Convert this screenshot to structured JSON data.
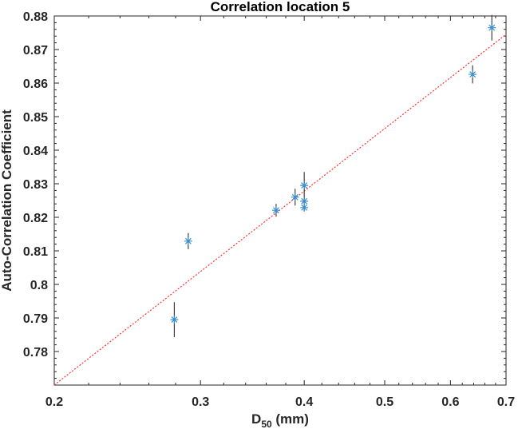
{
  "chart_data": {
    "type": "scatter",
    "title": "Correlation location 5",
    "xlabel": "D",
    "xlabel_subscript": "50",
    "xlabel_unit": " (mm)",
    "ylabel": "Auto-Correlation Coefficient",
    "xscale": "log",
    "xlim": [
      0.2,
      0.7
    ],
    "ylim": [
      0.77,
      0.88
    ],
    "grid": false,
    "x_ticks": [
      "0.2",
      "0.3",
      "0.4",
      "0.5",
      "0.6",
      "0.7"
    ],
    "y_ticks": [
      "0.78",
      "0.79",
      "0.8",
      "0.81",
      "0.82",
      "0.83",
      "0.84",
      "0.85",
      "0.86",
      "0.87",
      "0.88"
    ],
    "points": [
      {
        "x": 0.279,
        "y": 0.7895,
        "err": 0.0052
      },
      {
        "x": 0.29,
        "y": 0.8129,
        "err": 0.0024
      },
      {
        "x": 0.37,
        "y": 0.8221,
        "err": 0.0019
      },
      {
        "x": 0.39,
        "y": 0.826,
        "err": 0.0025
      },
      {
        "x": 0.4,
        "y": 0.8295,
        "err": 0.004
      },
      {
        "x": 0.4,
        "y": 0.8248,
        "err": 0.001
      },
      {
        "x": 0.4,
        "y": 0.8229,
        "err": 0.001
      },
      {
        "x": 0.638,
        "y": 0.8626,
        "err": 0.0027
      },
      {
        "x": 0.673,
        "y": 0.8765,
        "err": 0.0038
      }
    ],
    "fit_line": {
      "x": [
        0.2,
        0.7
      ],
      "y": [
        0.77,
        0.8745
      ],
      "style": "dotted"
    },
    "colors": {
      "marker": "#3a8fd0",
      "errorbar": "#404040",
      "fit": "#ff3030",
      "axis": "#262626"
    }
  }
}
